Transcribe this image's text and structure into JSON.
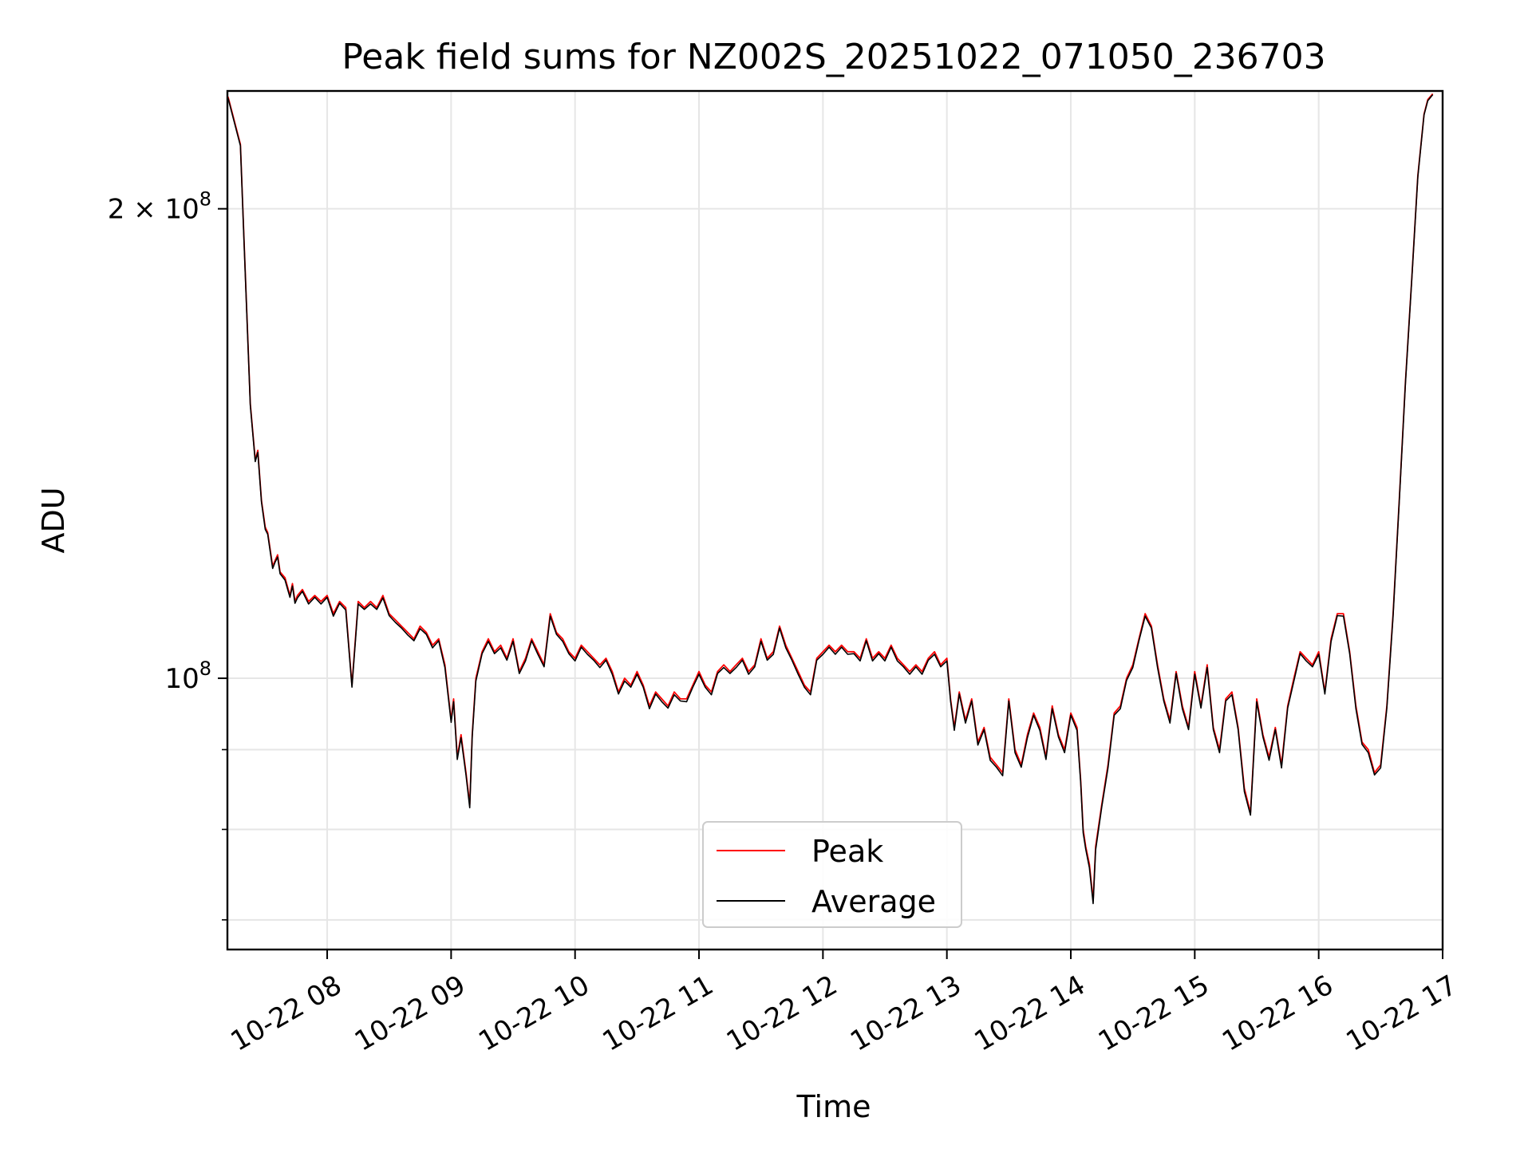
{
  "chart_data": {
    "type": "line",
    "title": "Peak field sums for NZ002S_20251022_071050_236703",
    "xlabel": "Time",
    "ylabel": "ADU",
    "yscale": "log",
    "xlim": [
      7.195,
      17.0
    ],
    "ylim": [
      67000000,
      238000000
    ],
    "grid": true,
    "legend_position": "lower-center",
    "x_ticks": [
      {
        "value": 8,
        "label": "10-22 08"
      },
      {
        "value": 9,
        "label": "10-22 09"
      },
      {
        "value": 10,
        "label": "10-22 10"
      },
      {
        "value": 11,
        "label": "10-22 11"
      },
      {
        "value": 12,
        "label": "10-22 12"
      },
      {
        "value": 13,
        "label": "10-22 13"
      },
      {
        "value": 14,
        "label": "10-22 14"
      },
      {
        "value": 15,
        "label": "10-22 15"
      },
      {
        "value": 16,
        "label": "10-22 16"
      },
      {
        "value": 17,
        "label": "10-22 17"
      }
    ],
    "y_major_ticks": [
      {
        "value": 100000000,
        "base": "10",
        "exp": "8"
      },
      {
        "value": 200000000,
        "base": "2 × 10",
        "exp": "8"
      }
    ],
    "y_minor_ticks": [
      70000000,
      80000000,
      90000000
    ],
    "x_hours": [
      7.2,
      7.3,
      7.33,
      7.36,
      7.38,
      7.42,
      7.44,
      7.47,
      7.5,
      7.52,
      7.56,
      7.58,
      7.6,
      7.62,
      7.66,
      7.7,
      7.72,
      7.74,
      7.76,
      7.8,
      7.85,
      7.9,
      7.95,
      8.0,
      8.05,
      8.1,
      8.15,
      8.2,
      8.25,
      8.3,
      8.35,
      8.4,
      8.45,
      8.5,
      8.55,
      8.6,
      8.65,
      8.7,
      8.75,
      8.8,
      8.85,
      8.9,
      8.95,
      9.0,
      9.02,
      9.05,
      9.08,
      9.12,
      9.15,
      9.17,
      9.2,
      9.25,
      9.3,
      9.35,
      9.4,
      9.45,
      9.5,
      9.55,
      9.6,
      9.65,
      9.7,
      9.75,
      9.8,
      9.85,
      9.9,
      9.95,
      10.0,
      10.05,
      10.1,
      10.15,
      10.2,
      10.25,
      10.3,
      10.35,
      10.4,
      10.45,
      10.5,
      10.55,
      10.6,
      10.65,
      10.7,
      10.75,
      10.8,
      10.85,
      10.9,
      10.95,
      11.0,
      11.05,
      11.1,
      11.15,
      11.2,
      11.25,
      11.3,
      11.35,
      11.4,
      11.45,
      11.5,
      11.55,
      11.6,
      11.65,
      11.7,
      11.75,
      11.8,
      11.85,
      11.9,
      11.95,
      12.0,
      12.05,
      12.1,
      12.15,
      12.2,
      12.25,
      12.3,
      12.35,
      12.4,
      12.45,
      12.5,
      12.55,
      12.6,
      12.65,
      12.7,
      12.75,
      12.8,
      12.85,
      12.9,
      12.95,
      13.0,
      13.03,
      13.06,
      13.1,
      13.15,
      13.2,
      13.25,
      13.3,
      13.35,
      13.4,
      13.45,
      13.5,
      13.55,
      13.6,
      13.65,
      13.7,
      13.75,
      13.8,
      13.85,
      13.9,
      13.95,
      14.0,
      14.05,
      14.08,
      14.1,
      14.12,
      14.15,
      14.18,
      14.2,
      14.25,
      14.3,
      14.35,
      14.4,
      14.45,
      14.5,
      14.55,
      14.6,
      14.65,
      14.7,
      14.75,
      14.8,
      14.85,
      14.9,
      14.95,
      15.0,
      15.05,
      15.1,
      15.15,
      15.2,
      15.25,
      15.3,
      15.35,
      15.4,
      15.45,
      15.5,
      15.55,
      15.6,
      15.65,
      15.7,
      15.75,
      15.8,
      15.85,
      15.9,
      15.95,
      16.0,
      16.05,
      16.1,
      16.15,
      16.2,
      16.25,
      16.3,
      16.35,
      16.4,
      16.45,
      16.5,
      16.55,
      16.6,
      16.65,
      16.7,
      16.75,
      16.8,
      16.85,
      16.88,
      16.92,
      16.96,
      17.0
    ],
    "series": [
      {
        "name": "Peak",
        "color": "#ff0000",
        "values": [
          236000000,
          220000000,
          190000000,
          165000000,
          150000000,
          138000000,
          140000000,
          130000000,
          125000000,
          124000000,
          118000000,
          119000000,
          120000000,
          117000000,
          116000000,
          113000000,
          115000000,
          112000000,
          113000000,
          114000000,
          112000000,
          113000000,
          112000000,
          113000000,
          110000000,
          112000000,
          111000000,
          99000000,
          112000000,
          111000000,
          112000000,
          111000000,
          113000000,
          110000000,
          109000000,
          108000000,
          107000000,
          106000000,
          108000000,
          107000000,
          105000000,
          106000000,
          102000000,
          94000000,
          97000000,
          89000000,
          92000000,
          87000000,
          83000000,
          92000000,
          100000000,
          104000000,
          106000000,
          104000000,
          105000000,
          103000000,
          106000000,
          101000000,
          103000000,
          106000000,
          104000000,
          102000000,
          110000000,
          107000000,
          106000000,
          104000000,
          103000000,
          105000000,
          104000000,
          103000000,
          102000000,
          103000000,
          101000000,
          98000000,
          100000000,
          99000000,
          101000000,
          99000000,
          96000000,
          98000000,
          97000000,
          96000000,
          98000000,
          97000000,
          97000000,
          99000000,
          101000000,
          99000000,
          98000000,
          101000000,
          102000000,
          101000000,
          102000000,
          103000000,
          101000000,
          102000000,
          106000000,
          103000000,
          104000000,
          108000000,
          105000000,
          103000000,
          101000000,
          99000000,
          98000000,
          103000000,
          104000000,
          105000000,
          104000000,
          105000000,
          104000000,
          104000000,
          103000000,
          106000000,
          103000000,
          104000000,
          103000000,
          105000000,
          103000000,
          102000000,
          101000000,
          102000000,
          101000000,
          103000000,
          104000000,
          102000000,
          103000000,
          97000000,
          93000000,
          98000000,
          94000000,
          97000000,
          91000000,
          93000000,
          89000000,
          88000000,
          87000000,
          97000000,
          90000000,
          88000000,
          92000000,
          95000000,
          93000000,
          89000000,
          96000000,
          92000000,
          90000000,
          95000000,
          93000000,
          86000000,
          80000000,
          78000000,
          76000000,
          72000000,
          78000000,
          83000000,
          88000000,
          95000000,
          96000000,
          100000000,
          102000000,
          106000000,
          110000000,
          108000000,
          102000000,
          97000000,
          94000000,
          101000000,
          96000000,
          93000000,
          101000000,
          96000000,
          102000000,
          93000000,
          90000000,
          97000000,
          98000000,
          93000000,
          85000000,
          82000000,
          97000000,
          92000000,
          89000000,
          93000000,
          88000000,
          96000000,
          100000000,
          104000000,
          103000000,
          102000000,
          104000000,
          98000000,
          106000000,
          110000000,
          110000000,
          104000000,
          96000000,
          91000000,
          90000000,
          87000000,
          88000000,
          96000000,
          110000000,
          130000000,
          155000000,
          180000000,
          210000000,
          230000000,
          235000000,
          237000000
        ]
      },
      {
        "name": "Average",
        "color": "#000000",
        "values": [
          235500000,
          219500000,
          189500000,
          164500000,
          149600000,
          137700000,
          139600000,
          129700000,
          124600000,
          123700000,
          117600000,
          118700000,
          119600000,
          116700000,
          115600000,
          112700000,
          114600000,
          111700000,
          112600000,
          113700000,
          111600000,
          112700000,
          111600000,
          112700000,
          109600000,
          111700000,
          110600000,
          98700000,
          111600000,
          110700000,
          111600000,
          110700000,
          112600000,
          109700000,
          108600000,
          107700000,
          106600000,
          105700000,
          107600000,
          106700000,
          104600000,
          105700000,
          101600000,
          93700000,
          96600000,
          88700000,
          91600000,
          86700000,
          82600000,
          91700000,
          99600000,
          103700000,
          105600000,
          103700000,
          104600000,
          102700000,
          105600000,
          100700000,
          102600000,
          105700000,
          103600000,
          101700000,
          109600000,
          106700000,
          105600000,
          103700000,
          102600000,
          104700000,
          103600000,
          102700000,
          101600000,
          102700000,
          100600000,
          97700000,
          99600000,
          98700000,
          100600000,
          98700000,
          95600000,
          97700000,
          96600000,
          95700000,
          97600000,
          96700000,
          96600000,
          98700000,
          100600000,
          98700000,
          97600000,
          100700000,
          101600000,
          100700000,
          101600000,
          102700000,
          100600000,
          101700000,
          105600000,
          102700000,
          103600000,
          107700000,
          104600000,
          102700000,
          100600000,
          98700000,
          97600000,
          102700000,
          103600000,
          104700000,
          103600000,
          104700000,
          103600000,
          103700000,
          102600000,
          105700000,
          102600000,
          103700000,
          102600000,
          104700000,
          102600000,
          101700000,
          100600000,
          101700000,
          100600000,
          102700000,
          103600000,
          101700000,
          102600000,
          96700000,
          92600000,
          97700000,
          93600000,
          96700000,
          90600000,
          92700000,
          88600000,
          87700000,
          86600000,
          96700000,
          89600000,
          87700000,
          91600000,
          94700000,
          92600000,
          88700000,
          95600000,
          91700000,
          89600000,
          94700000,
          92600000,
          85700000,
          79600000,
          77700000,
          75600000,
          71700000,
          77600000,
          82700000,
          87600000,
          94700000,
          95600000,
          99700000,
          101600000,
          105700000,
          109600000,
          107700000,
          101600000,
          96700000,
          93600000,
          100700000,
          95600000,
          92700000,
          100600000,
          95700000,
          101600000,
          92700000,
          89600000,
          96700000,
          97600000,
          92700000,
          84600000,
          81700000,
          96600000,
          91700000,
          88600000,
          92700000,
          87600000,
          95700000,
          99600000,
          103700000,
          102600000,
          101700000,
          103600000,
          97700000,
          105600000,
          109700000,
          109600000,
          103700000,
          95600000,
          90700000,
          89600000,
          86700000,
          87600000,
          95700000,
          109600000,
          129700000,
          154600000,
          179700000,
          209600000,
          229700000,
          234600000,
          236700000
        ]
      }
    ]
  }
}
